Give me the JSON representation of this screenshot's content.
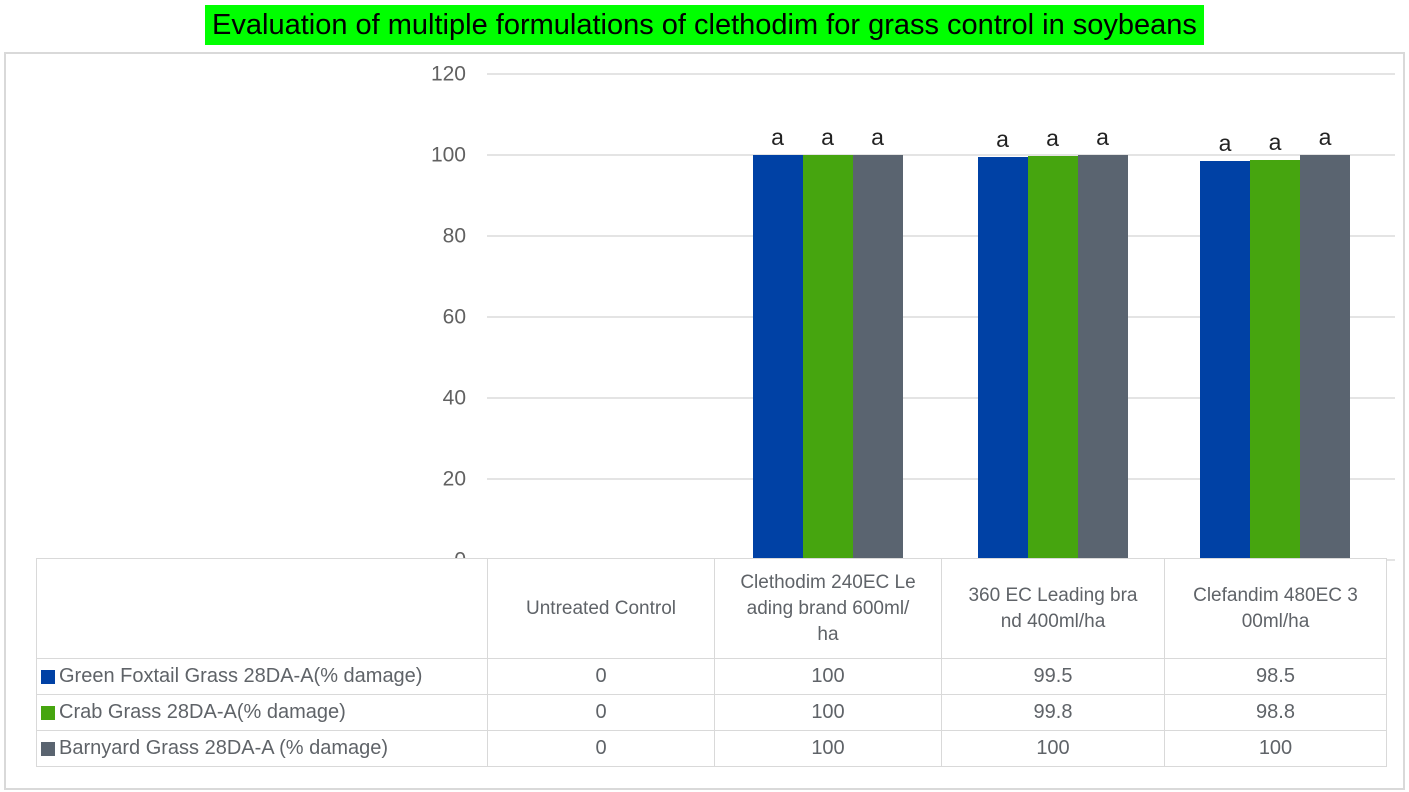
{
  "title": {
    "text": "Evaluation of multiple formulations of clethodim for grass control in soybeans",
    "highlight_color": "#00ff00",
    "text_color": "#000000"
  },
  "chart_data": {
    "type": "bar",
    "title": "Evaluation of multiple formulations of clethodim for grass control in soybeans",
    "categories": [
      "Untreated Control",
      "Clethodim 240EC Leading brand 600ml/ha",
      "360 EC Leading brand 400ml/ha",
      "Clefandim 480EC 300ml/ha"
    ],
    "category_display": [
      "Untreated Control",
      "Clethodim 240EC Le\nading brand 600ml/\nha",
      "360 EC Leading bra\nnd 400ml/ha",
      "Clefandim 480EC 3\n00ml/ha"
    ],
    "series": [
      {
        "name": "Green Foxtail Grass 28DA-A(% damage)",
        "color": "#0041a5",
        "values": [
          0,
          100,
          99.5,
          98.5
        ]
      },
      {
        "name": "Crab Grass 28DA-A(% damage)",
        "color": "#46a50f",
        "values": [
          0,
          100,
          99.8,
          98.8
        ]
      },
      {
        "name": "Barnyard Grass 28DA-A (% damage)",
        "color": "#5a6470",
        "values": [
          0,
          100,
          100,
          100
        ]
      }
    ],
    "value_labels": [
      [
        "0",
        "100",
        "99.5",
        "98.5"
      ],
      [
        "0",
        "100",
        "99.8",
        "98.8"
      ],
      [
        "0",
        "100",
        "100",
        "100"
      ]
    ],
    "bar_annotations": [
      [
        "",
        "a",
        "a",
        "a"
      ],
      [
        "",
        "a",
        "a",
        "a"
      ],
      [
        "",
        "a",
        "a",
        "a"
      ]
    ],
    "xlabel": "",
    "ylabel": "",
    "ylim": [
      0,
      120
    ],
    "y_ticks": [
      "0",
      "20",
      "40",
      "60",
      "80",
      "100",
      "120"
    ],
    "y_tick_interval": 20,
    "grid": true,
    "gridline_color": "#e4e4e4",
    "legend_position": "table-left"
  }
}
